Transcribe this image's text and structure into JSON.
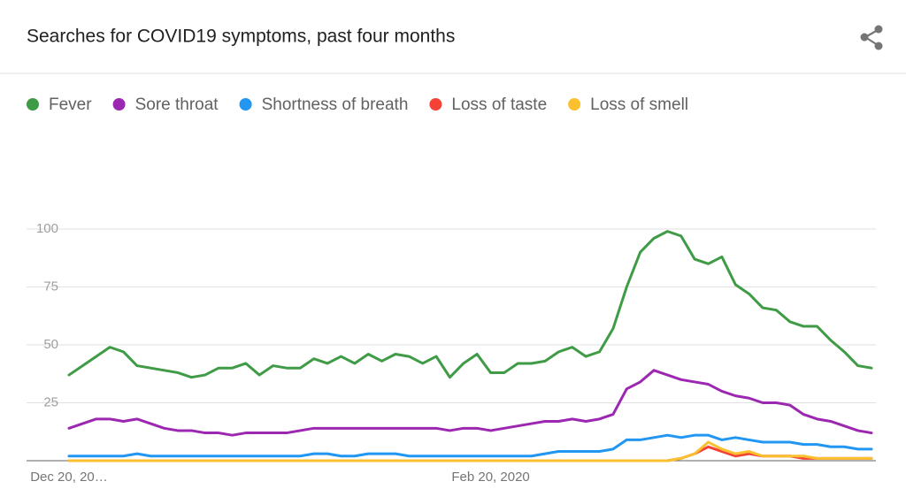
{
  "chart_data": {
    "type": "line",
    "title": "Searches for COVID19 symptoms, past four months",
    "categories": [
      "Dec 20, 20…",
      null,
      null,
      null,
      null,
      null,
      null,
      null,
      null,
      null,
      null,
      null,
      null,
      null,
      null,
      null,
      null,
      null,
      null,
      null,
      null,
      null,
      null,
      null,
      null,
      null,
      null,
      null,
      null,
      null,
      null,
      "Feb 20, 2020",
      null,
      null,
      null,
      null,
      null,
      null,
      null,
      null,
      null,
      null,
      null,
      null,
      null,
      null,
      null,
      null,
      null,
      null,
      null,
      null,
      null,
      null,
      null,
      null,
      null,
      null,
      null,
      null
    ],
    "series": [
      {
        "name": "Fever",
        "color": "#3f9b45",
        "values": [
          37,
          41,
          45,
          49,
          47,
          41,
          40,
          39,
          38,
          36,
          37,
          40,
          40,
          42,
          37,
          41,
          40,
          40,
          44,
          42,
          45,
          42,
          46,
          43,
          46,
          45,
          42,
          45,
          36,
          42,
          46,
          38,
          38,
          42,
          42,
          43,
          47,
          49,
          45,
          47,
          57,
          75,
          90,
          96,
          99,
          97,
          87,
          85,
          88,
          76,
          72,
          66,
          65,
          60,
          58,
          58,
          52,
          47,
          41,
          40
        ]
      },
      {
        "name": "Sore throat",
        "color": "#9c27b0",
        "values": [
          14,
          16,
          18,
          18,
          17,
          18,
          16,
          14,
          13,
          13,
          12,
          12,
          11,
          12,
          12,
          12,
          12,
          13,
          14,
          14,
          14,
          14,
          14,
          14,
          14,
          14,
          14,
          14,
          13,
          14,
          14,
          13,
          14,
          15,
          16,
          17,
          17,
          18,
          17,
          18,
          20,
          31,
          34,
          39,
          37,
          35,
          34,
          33,
          30,
          28,
          27,
          25,
          25,
          24,
          20,
          18,
          17,
          15,
          13,
          12
        ]
      },
      {
        "name": "Shortness of breath",
        "color": "#2196f3",
        "values": [
          2,
          2,
          2,
          2,
          2,
          3,
          2,
          2,
          2,
          2,
          2,
          2,
          2,
          2,
          2,
          2,
          2,
          2,
          3,
          3,
          2,
          2,
          3,
          3,
          3,
          2,
          2,
          2,
          2,
          2,
          2,
          2,
          2,
          2,
          2,
          3,
          4,
          4,
          4,
          4,
          5,
          9,
          9,
          10,
          11,
          10,
          11,
          11,
          9,
          10,
          9,
          8,
          8,
          8,
          7,
          7,
          6,
          6,
          5,
          5
        ]
      },
      {
        "name": "Loss of taste",
        "color": "#f44336",
        "values": [
          0,
          0,
          0,
          0,
          0,
          0,
          0,
          0,
          0,
          0,
          0,
          0,
          0,
          0,
          0,
          0,
          0,
          0,
          0,
          0,
          0,
          0,
          0,
          0,
          0,
          0,
          0,
          0,
          0,
          0,
          0,
          0,
          0,
          0,
          0,
          0,
          0,
          0,
          0,
          0,
          0,
          0,
          0,
          0,
          0,
          1,
          3,
          6,
          4,
          2,
          3,
          2,
          2,
          2,
          1,
          1,
          1,
          1,
          1,
          1
        ]
      },
      {
        "name": "Loss of smell",
        "color": "#fbc02d",
        "values": [
          0,
          0,
          0,
          0,
          0,
          0,
          0,
          0,
          0,
          0,
          0,
          0,
          0,
          0,
          0,
          0,
          0,
          0,
          0,
          0,
          0,
          0,
          0,
          0,
          0,
          0,
          0,
          0,
          0,
          0,
          0,
          0,
          0,
          0,
          0,
          0,
          0,
          0,
          0,
          0,
          0,
          0,
          0,
          0,
          0,
          1,
          3,
          8,
          5,
          3,
          4,
          2,
          2,
          2,
          2,
          1,
          1,
          1,
          1,
          1
        ]
      }
    ],
    "ylim": [
      0,
      100
    ],
    "yticks": [
      25,
      50,
      75,
      100
    ],
    "grid": true
  }
}
